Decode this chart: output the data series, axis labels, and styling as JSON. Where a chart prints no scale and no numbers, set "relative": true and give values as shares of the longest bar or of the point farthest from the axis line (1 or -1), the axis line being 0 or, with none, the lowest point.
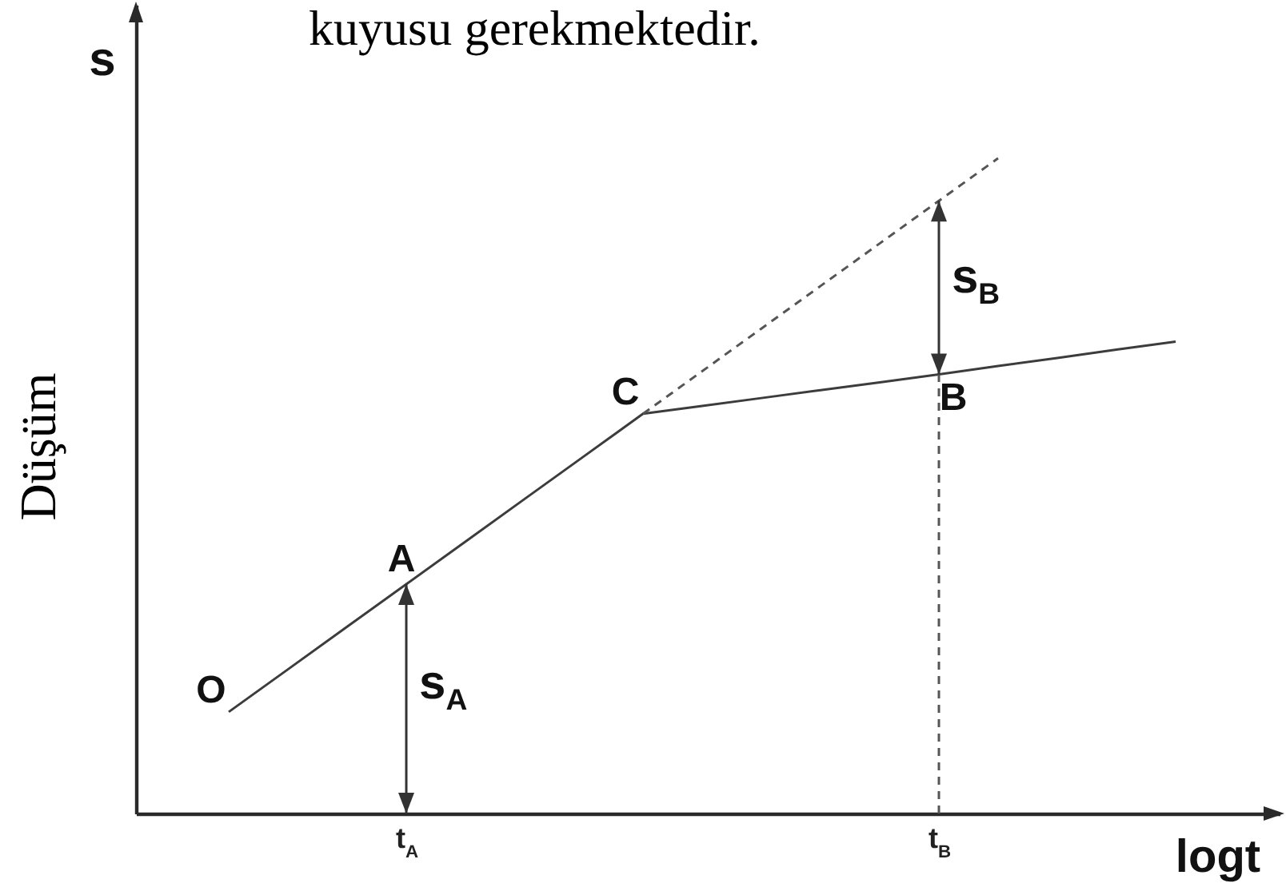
{
  "chart_data": {
    "type": "line",
    "title": "kuyusu gerekmektedir.",
    "xlabel": "logt",
    "ylabel": "Düşüm",
    "relative": true,
    "categories": [
      null,
      null,
      null,
      "t$_{A}$",
      null,
      null,
      null,
      null,
      null,
      null,
      null,
      null,
      "t$_{B}$",
      null,
      null,
      null,
      null
    ],
    "series": [
      {
        "color": "#3c3c3c",
        "line_style": "solid",
        "values": [
          0.155,
          0.22,
          0.285,
          0.35,
          0.415,
          0.48,
          0.545,
          0.61,
          0.622,
          0.634,
          0.646,
          0.658,
          0.67,
          0.683,
          0.695,
          0.708,
          0.72
        ]
      },
      {
        "color": "#555555",
        "line_style": "dashed",
        "values": [
          null,
          null,
          null,
          null,
          null,
          null,
          null,
          0.61,
          0.675,
          0.74,
          0.805,
          0.87,
          0.935,
          1,
          null,
          null,
          null
        ]
      }
    ],
    "ref_lines": [
      {
        "axis": "x",
        "value": "t$_{A}$",
        "color": "#333333"
      },
      {
        "axis": "x",
        "value": "t$_{B}$",
        "color": "#555555",
        "line_style": "dashed"
      },
      {
        "axis": "x",
        "value": "t$_{B}$",
        "color": "#333333"
      }
    ],
    "annotations": [
      "s",
      "O",
      "C",
      {
        "text": "A",
        "x": "t$_{A}$",
        "y": 0.35
      },
      {
        "text": "B",
        "x": "t$_{B}$",
        "y": 0.67
      },
      {
        "text": "s$_{A}$",
        "x": "t$_{A}$",
        "y": 0.2
      },
      {
        "text": "s$_{B}$",
        "x": "t$_{B}$",
        "y": 0.82
      }
    ]
  }
}
